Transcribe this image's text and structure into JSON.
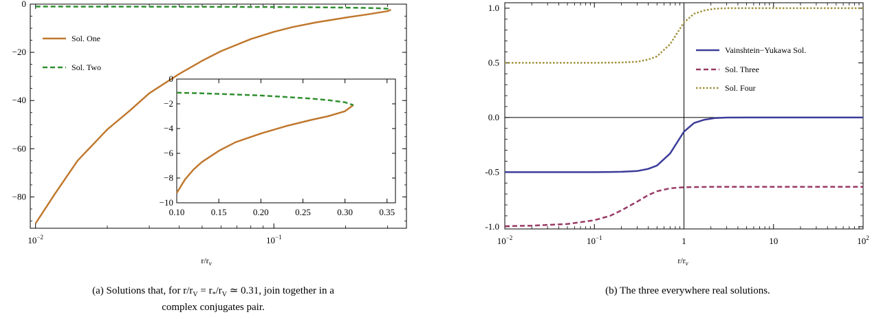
{
  "chart_data": [
    {
      "id": "a",
      "type": "line",
      "caption": "(a)  Solutions that, for r/r_V = r_*/r_V ≃ 0.31, join together in a complex conjugates pair.",
      "caption_lines": [
        "(a)  Solutions that, for r/r",
        "V",
        " = r",
        "*",
        "/r",
        "V",
        " ≃ 0.31, join together in a",
        "complex conjugates pair."
      ],
      "xlabel": "r/r",
      "xlabel_sub": "v",
      "xscale": "log",
      "xlim": [
        0.0095,
        0.36
      ],
      "ylim": [
        -93,
        0
      ],
      "x_ticks": [
        {
          "v": 0.01,
          "base": "10",
          "exp": "−2"
        },
        {
          "v": 0.1,
          "base": "10",
          "exp": "−1"
        }
      ],
      "y_ticks": [
        "0",
        "−20",
        "−40",
        "−60",
        "−80"
      ],
      "legend": [
        "Sol. One",
        "Sol. Two"
      ],
      "series": [
        {
          "name": "Sol. One",
          "color": "#c0782e",
          "dash": "none",
          "x": [
            0.01,
            0.012,
            0.015,
            0.02,
            0.025,
            0.03,
            0.04,
            0.05,
            0.06,
            0.08,
            0.1,
            0.12,
            0.15,
            0.2,
            0.25,
            0.3,
            0.31
          ],
          "y": [
            -91,
            -79,
            -65,
            -52,
            -44,
            -37,
            -29,
            -23.5,
            -19.5,
            -14.5,
            -11.5,
            -9.5,
            -7.6,
            -5.6,
            -4.2,
            -2.9,
            -2.3
          ]
        },
        {
          "name": "Sol. Two",
          "color": "#2f8f2f",
          "dash": "dashed",
          "x": [
            0.01,
            0.03,
            0.05,
            0.1,
            0.15,
            0.2,
            0.25,
            0.28,
            0.3,
            0.31
          ],
          "y": [
            -1.0,
            -1.05,
            -1.1,
            -1.2,
            -1.3,
            -1.45,
            -1.6,
            -1.75,
            -1.95,
            -2.3
          ]
        }
      ],
      "inset": {
        "xlim": [
          0.1,
          0.36
        ],
        "ylim": [
          -10,
          0
        ],
        "x_ticks": [
          "0.10",
          "0.15",
          "0.20",
          "0.25",
          "0.30",
          "0.35"
        ],
        "y_ticks": [
          "0",
          "−2",
          "−4",
          "−6",
          "−8",
          "−10"
        ],
        "series": [
          {
            "name": "Sol. One",
            "x": [
              0.1,
              0.11,
              0.12,
              0.13,
              0.15,
              0.17,
              0.2,
              0.23,
              0.26,
              0.28,
              0.3,
              0.31
            ],
            "y": [
              -9.2,
              -8.1,
              -7.3,
              -6.7,
              -5.8,
              -5.1,
              -4.4,
              -3.8,
              -3.3,
              -3.0,
              -2.6,
              -2.1
            ]
          },
          {
            "name": "Sol. Two",
            "x": [
              0.1,
              0.13,
              0.16,
              0.2,
              0.23,
              0.26,
              0.28,
              0.3,
              0.31
            ],
            "y": [
              -1.1,
              -1.15,
              -1.22,
              -1.33,
              -1.45,
              -1.58,
              -1.7,
              -1.88,
              -2.1
            ]
          }
        ]
      }
    },
    {
      "id": "b",
      "type": "line",
      "caption": "(b)  The three everywhere real solutions.",
      "xlabel": "r/r",
      "xlabel_sub": "v",
      "xscale": "log",
      "xlim": [
        0.01,
        100
      ],
      "ylim": [
        -1.02,
        1.05
      ],
      "x_ticks": [
        {
          "v": 0.01,
          "base": "10",
          "exp": "−2"
        },
        {
          "v": 0.1,
          "base": "10",
          "exp": "−1"
        },
        {
          "v": 1,
          "base": "1",
          "exp": ""
        },
        {
          "v": 10,
          "base": "10",
          "exp": ""
        },
        {
          "v": 100,
          "base": "10",
          "exp": "2"
        }
      ],
      "y_ticks": [
        "1.0",
        "0.5",
        "0.0",
        "-0.5",
        "-1.0"
      ],
      "legend": [
        "Vainshtein−Yukawa Sol.",
        "Sol. Three",
        "Sol. Four"
      ],
      "series": [
        {
          "name": "Vainshtein−Yukawa Sol.",
          "color": "#3c3c9a",
          "dash": "none",
          "x": [
            0.01,
            0.1,
            0.2,
            0.3,
            0.4,
            0.5,
            0.7,
            1.0,
            1.3,
            1.7,
            2.2,
            3,
            5,
            10,
            100
          ],
          "y": [
            -0.5,
            -0.5,
            -0.497,
            -0.49,
            -0.47,
            -0.44,
            -0.33,
            -0.13,
            -0.05,
            -0.02,
            -0.006,
            -0.001,
            0,
            0,
            0
          ]
        },
        {
          "name": "Sol. Three",
          "color": "#983a66",
          "dash": "dashed",
          "x": [
            0.01,
            0.02,
            0.05,
            0.1,
            0.15,
            0.2,
            0.3,
            0.4,
            0.5,
            0.7,
            1.0,
            2,
            10,
            100
          ],
          "y": [
            -0.995,
            -0.99,
            -0.975,
            -0.94,
            -0.9,
            -0.85,
            -0.77,
            -0.71,
            -0.675,
            -0.648,
            -0.638,
            -0.635,
            -0.635,
            -0.635
          ]
        },
        {
          "name": "Sol. Four",
          "color": "#a0903a",
          "dash": "dotted",
          "x": [
            0.01,
            0.1,
            0.2,
            0.3,
            0.4,
            0.5,
            0.7,
            1.0,
            1.3,
            1.7,
            2.2,
            3,
            5,
            10,
            100
          ],
          "y": [
            0.5,
            0.5,
            0.503,
            0.51,
            0.53,
            0.56,
            0.67,
            0.87,
            0.95,
            0.98,
            0.995,
            1.0,
            1.0,
            1.0,
            1.0
          ]
        }
      ]
    }
  ]
}
